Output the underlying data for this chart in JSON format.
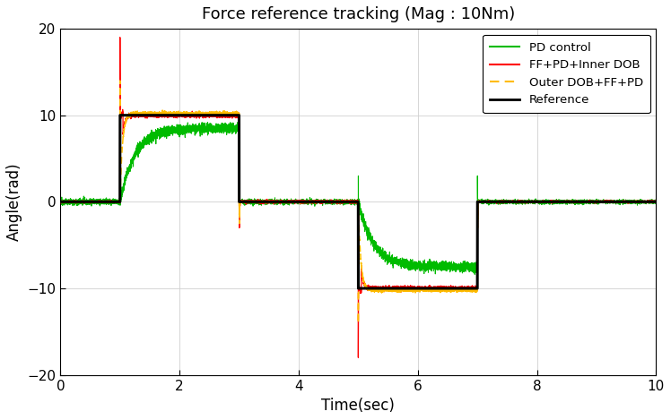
{
  "title": "Force reference tracking (Mag : 10Nm)",
  "xlabel": "Time(sec)",
  "ylabel": "Angle(rad)",
  "xlim": [
    0,
    10
  ],
  "ylim": [
    -20,
    20
  ],
  "xticks": [
    0,
    2,
    4,
    6,
    8,
    10
  ],
  "yticks": [
    -20,
    -10,
    0,
    10,
    20
  ],
  "colors": {
    "pd": "#00bb00",
    "ff_pd_inner": "#ff0000",
    "outer_dob": "#ffbb00",
    "reference": "#000000"
  },
  "legend_labels": [
    "PD control",
    "FF+PD+Inner DOB",
    "Outer DOB+FF+PD",
    "Reference"
  ],
  "figsize": [
    7.48,
    4.69
  ],
  "dpi": 100,
  "background_color": "#ffffff",
  "axes_bg": "#ffffff",
  "grid_color": "#d0d0d0"
}
